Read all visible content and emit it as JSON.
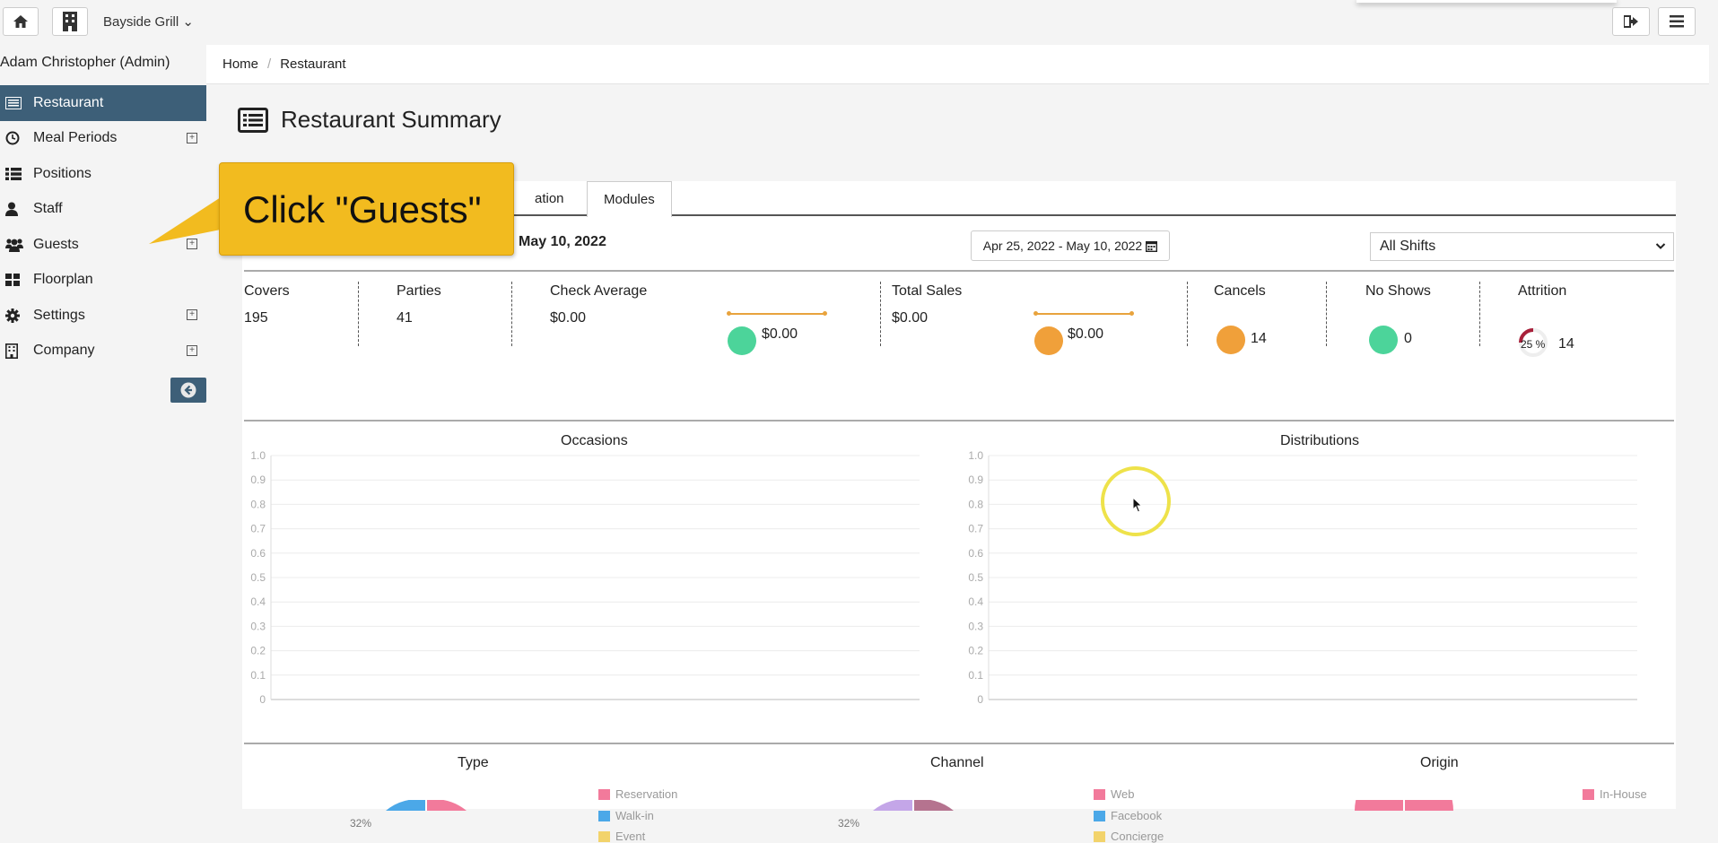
{
  "topbar": {
    "brand": "Bayside Grill",
    "brand_chev": "⌄"
  },
  "user": {
    "name": "Adam Christopher (Admin)"
  },
  "sidebar": {
    "items": [
      {
        "label": "Restaurant",
        "icon": "restaurant-icon",
        "active": true,
        "expandable": false
      },
      {
        "label": "Meal Periods",
        "icon": "clock-icon",
        "expandable": true
      },
      {
        "label": "Positions",
        "icon": "list-icon",
        "expandable": false
      },
      {
        "label": "Staff",
        "icon": "user-icon",
        "expandable": false
      },
      {
        "label": "Guests",
        "icon": "users-icon",
        "expandable": true
      },
      {
        "label": "Floorplan",
        "icon": "grid-icon",
        "expandable": false
      },
      {
        "label": "Settings",
        "icon": "gear-icon",
        "expandable": true
      },
      {
        "label": "Company",
        "icon": "building-icon",
        "expandable": true
      }
    ],
    "plus": "+"
  },
  "breadcrumb": {
    "home": "Home",
    "sep": "/",
    "current": "Restaurant"
  },
  "page": {
    "title": "Restaurant Summary"
  },
  "tabs": {
    "partial": "ation",
    "modules": "Modules"
  },
  "filters": {
    "date_title": "May 10, 2022",
    "date_range": "Apr 25, 2022 - May 10, 2022",
    "shift": "All Shifts"
  },
  "stats": {
    "covers": {
      "label": "Covers",
      "value": "195"
    },
    "parties": {
      "label": "Parties",
      "value": "41"
    },
    "check_average": {
      "label": "Check Average",
      "value": "$0.00",
      "dot_value": "$0.00"
    },
    "total_sales": {
      "label": "Total Sales",
      "value": "$0.00",
      "dot_value": "$0.00"
    },
    "cancels": {
      "label": "Cancels",
      "value": "14"
    },
    "no_shows": {
      "label": "No Shows",
      "value": "0"
    },
    "attrition": {
      "label": "Attrition",
      "percent": "25 %",
      "value": "14"
    }
  },
  "colors": {
    "green": "#4cd49a",
    "orange": "#f0a03a",
    "accent": "#3d5f78",
    "red": "#a8203a",
    "callout": "#f2bb1f"
  },
  "chart_data": [
    {
      "type": "line",
      "title": "Occasions",
      "ylim": [
        0,
        1
      ],
      "yticks": [
        "1.0",
        "0.9",
        "0.8",
        "0.7",
        "0.6",
        "0.5",
        "0.4",
        "0.3",
        "0.2",
        "0.1",
        "0"
      ],
      "series": [],
      "grid": true
    },
    {
      "type": "line",
      "title": "Distributions",
      "ylim": [
        0,
        1
      ],
      "yticks": [
        "1.0",
        "0.9",
        "0.8",
        "0.7",
        "0.6",
        "0.5",
        "0.4",
        "0.3",
        "0.2",
        "0.1",
        "0"
      ],
      "series": [],
      "grid": true
    },
    {
      "type": "pie",
      "title": "Type",
      "label": "32%",
      "legend": [
        {
          "name": "Reservation",
          "color": "#f27a9b"
        },
        {
          "name": "Walk-in",
          "color": "#4ba8e8"
        },
        {
          "name": "Event",
          "color": "#f2d36b"
        }
      ]
    },
    {
      "type": "pie",
      "title": "Channel",
      "label": "32%",
      "legend": [
        {
          "name": "Web",
          "color": "#f27a9b"
        },
        {
          "name": "Facebook",
          "color": "#4ba8e8"
        },
        {
          "name": "Concierge",
          "color": "#f2d36b"
        }
      ]
    },
    {
      "type": "pie",
      "title": "Origin",
      "legend": [
        {
          "name": "In-House",
          "color": "#f27a9b"
        }
      ]
    }
  ],
  "callout": {
    "text": "Click \"Guests\""
  }
}
